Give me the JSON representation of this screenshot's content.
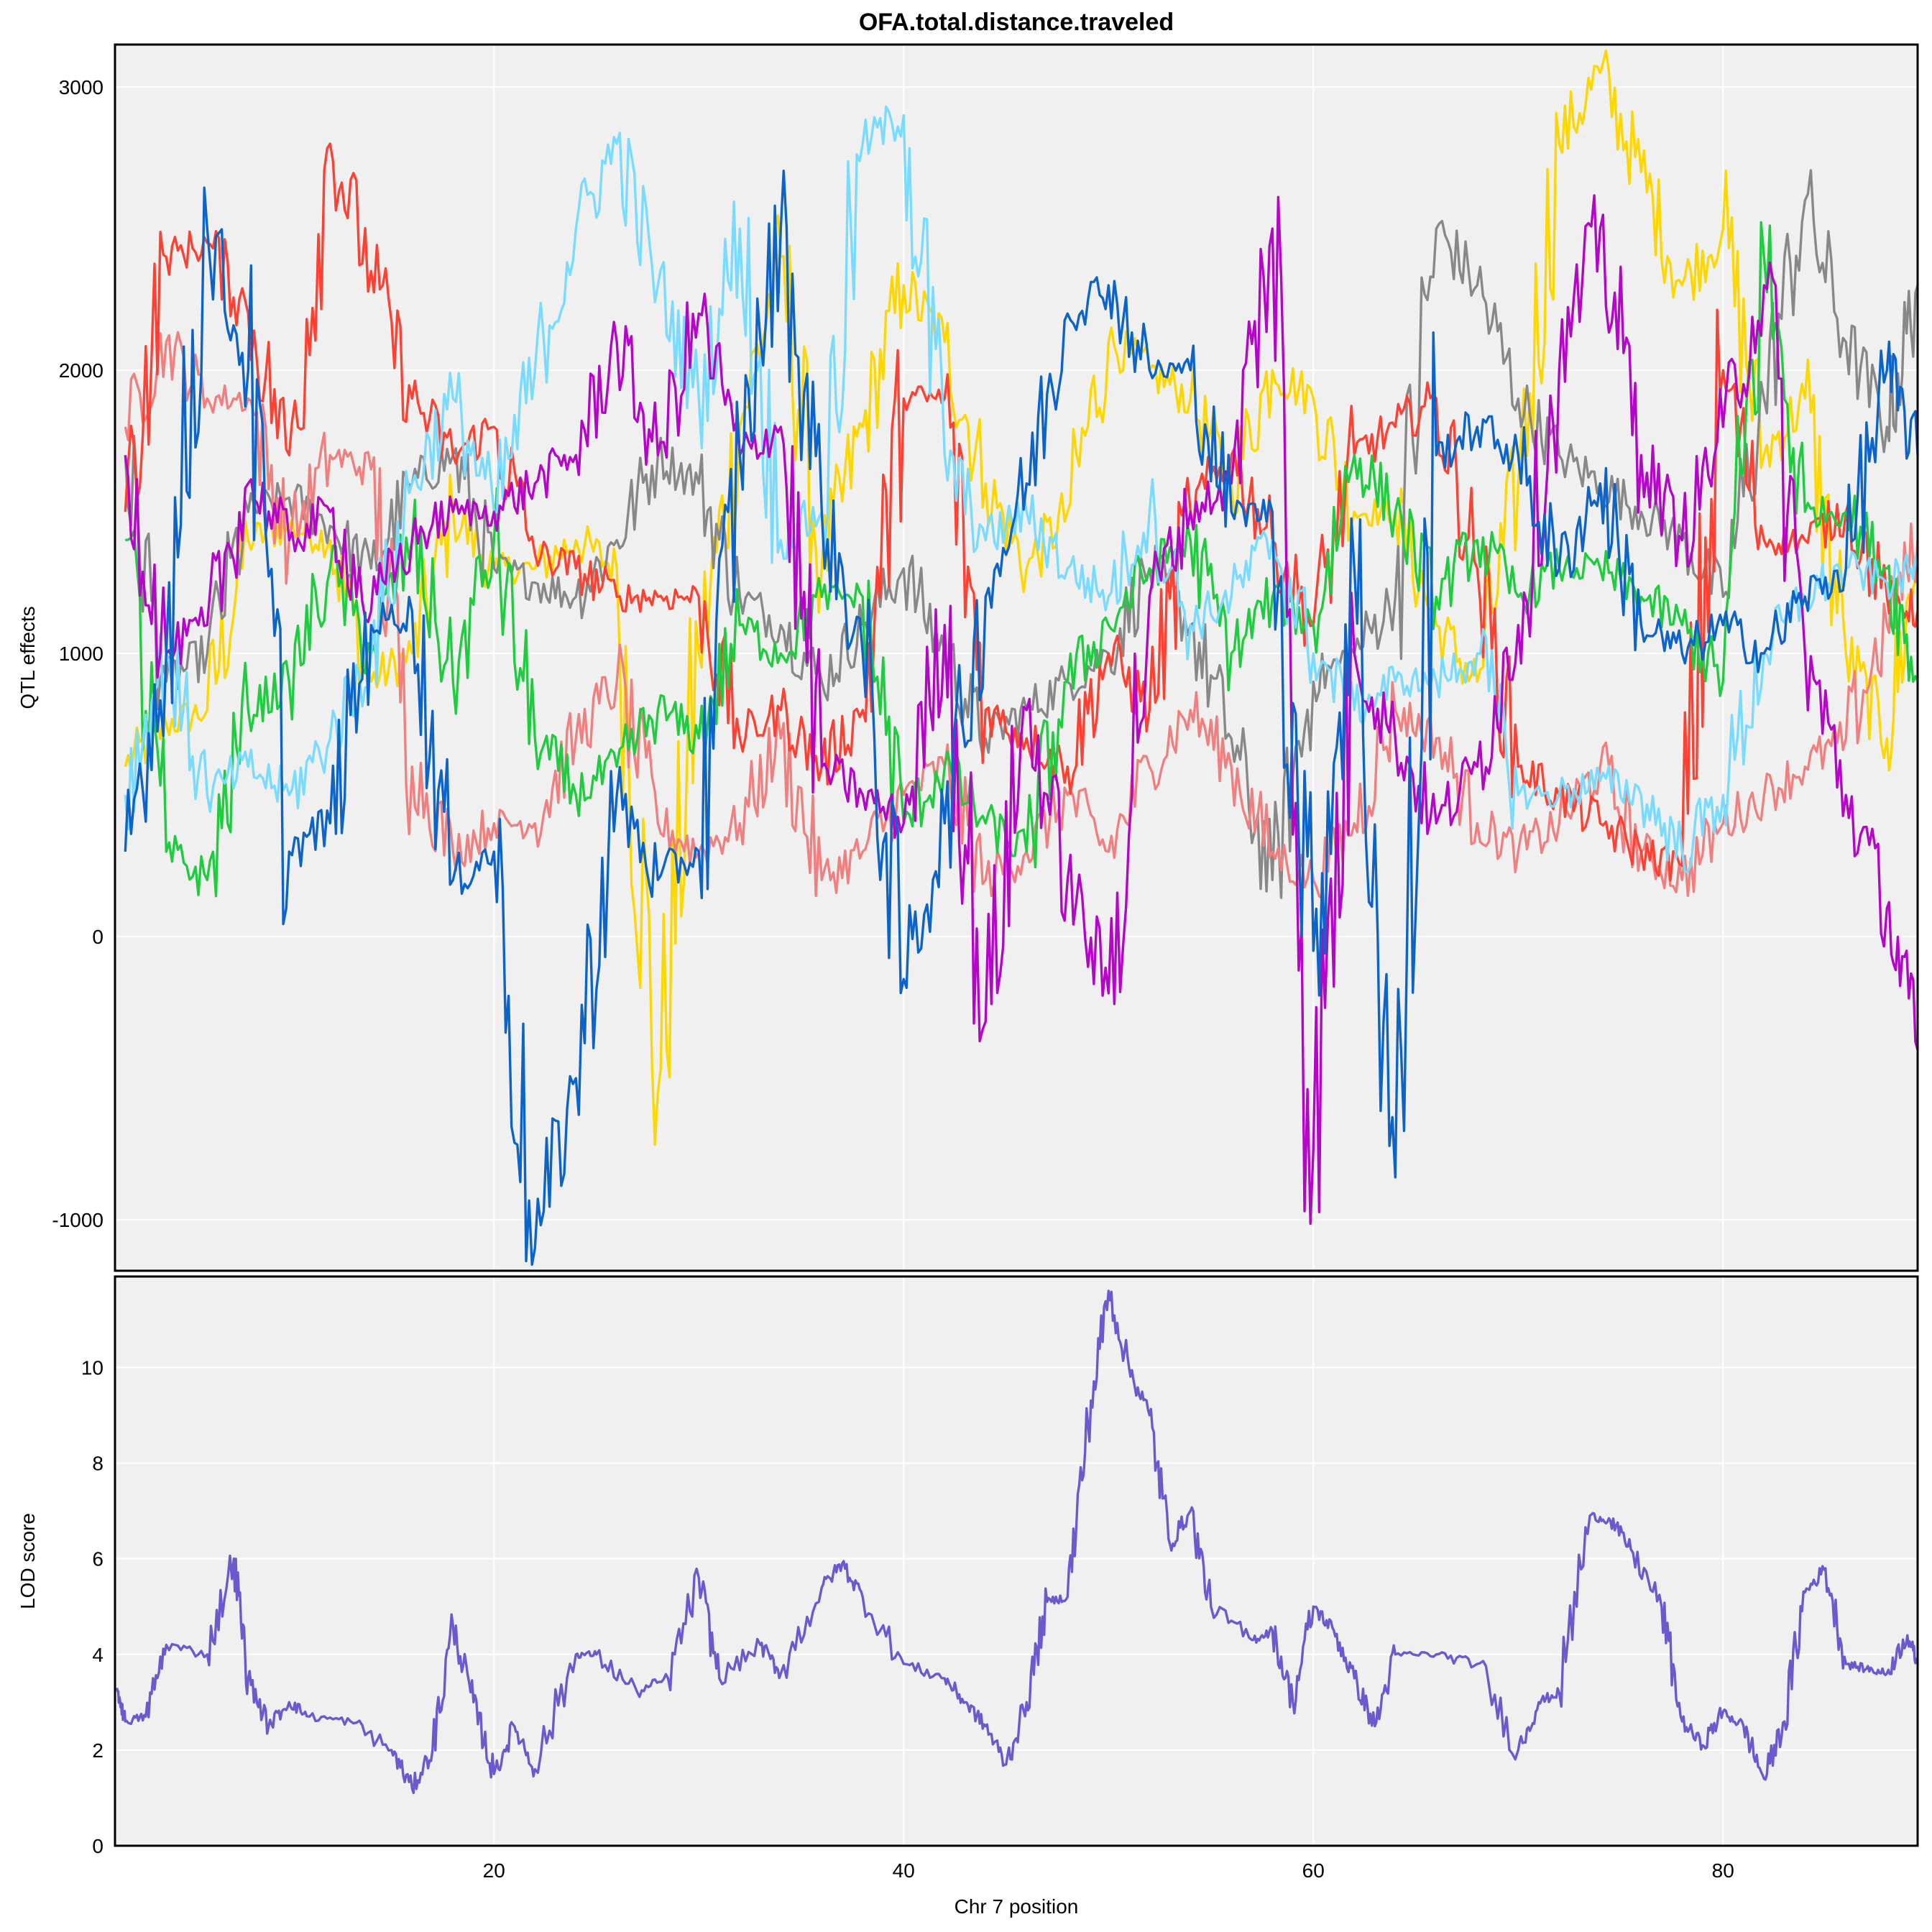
{
  "chart_data": [
    {
      "type": "line",
      "panel": "top",
      "title": "OFA.total.distance.traveled",
      "xlabel": "",
      "ylabel": "QTL effects",
      "xlim": [
        1.5,
        89.5
      ],
      "ylim": [
        -1180,
        3150
      ],
      "xticks": [
        20,
        40,
        60,
        80
      ],
      "yticks": [
        -1000,
        0,
        1000,
        2000,
        3000
      ],
      "grid": true,
      "x": [
        2,
        4,
        6,
        8,
        10,
        12,
        14,
        16,
        18,
        20,
        22,
        24,
        26,
        28,
        30,
        32,
        34,
        36,
        38,
        40,
        42,
        44,
        46,
        48,
        50,
        52,
        54,
        56,
        58,
        60,
        62,
        64,
        66,
        68,
        70,
        72,
        74,
        76,
        78,
        80,
        82,
        84,
        86,
        88,
        89.5
      ],
      "series": [
        {
          "color": "#ffd700",
          "values": [
            600,
            750,
            800,
            1400,
            1450,
            1400,
            900,
            1000,
            1500,
            1300,
            1300,
            1400,
            1300,
            -550,
            1000,
            1800,
            2400,
            1300,
            1800,
            2300,
            2100,
            1600,
            1300,
            1500,
            2100,
            2000,
            1900,
            1600,
            2000,
            1900,
            1500,
            1500,
            1100,
            900,
            1600,
            2800,
            3050,
            2700,
            2300,
            2500,
            1700,
            1900,
            1000,
            700,
            1350
          ]
        },
        {
          "color": "#888888",
          "values": [
            1700,
            900,
            1000,
            1500,
            1550,
            1450,
            1300,
            1600,
            1700,
            1300,
            1250,
            1200,
            1400,
            1700,
            1600,
            1200,
            1100,
            900,
            1100,
            1300,
            1000,
            700,
            800,
            900,
            1000,
            1300,
            1100,
            700,
            200,
            900,
            1000,
            1200,
            2500,
            2300,
            1900,
            1700,
            1600,
            1500,
            1400,
            1200,
            1900,
            2600,
            2100,
            1800,
            2300
          ]
        },
        {
          "color": "#f08080",
          "values": [
            1800,
            2100,
            1900,
            1900,
            1400,
            1700,
            1650,
            600,
            300,
            400,
            400,
            700,
            900,
            400,
            300,
            400,
            700,
            200,
            300,
            500,
            600,
            200,
            300,
            500,
            300,
            600,
            800,
            600,
            300,
            200,
            400,
            800,
            700,
            400,
            300,
            400,
            600,
            300,
            200,
            400,
            500,
            600,
            700,
            1100,
            1400
          ]
        },
        {
          "color": "#ff4133",
          "values": [
            1500,
            2400,
            2450,
            2200,
            1700,
            2800,
            2350,
            1900,
            1700,
            1800,
            1350,
            1300,
            1200,
            1200,
            1200,
            700,
            800,
            600,
            800,
            1900,
            1900,
            800,
            700,
            600,
            1000,
            800,
            1500,
            1700,
            1400,
            1100,
            1700,
            1800,
            1900,
            1300,
            600,
            500,
            400,
            300,
            250,
            2000,
            1400,
            1400,
            1500,
            1200,
            1150
          ]
        },
        {
          "color": "#1fcc3f",
          "values": [
            1400,
            300,
            200,
            800,
            900,
            1300,
            1000,
            1400,
            900,
            1400,
            700,
            500,
            600,
            800,
            700,
            1100,
            1000,
            1200,
            1200,
            400,
            600,
            400,
            300,
            900,
            1100,
            1300,
            1400,
            1000,
            1200,
            1100,
            1700,
            1500,
            1200,
            1400,
            1200,
            1300,
            1300,
            1200,
            1100,
            900,
            2400,
            1500,
            1500,
            1300,
            900
          ]
        },
        {
          "color": "#78dbff",
          "values": [
            500,
            1000,
            500,
            600,
            500,
            700,
            1000,
            1600,
            1900,
            1500,
            2000,
            2500,
            2800,
            2300,
            1900,
            2500,
            1400,
            1500,
            2800,
            2900,
            1700,
            1400,
            1500,
            1300,
            1200,
            1500,
            1100,
            1200,
            1400,
            1000,
            800,
            900,
            900,
            1000,
            500,
            500,
            550,
            500,
            300,
            500,
            1000,
            1200,
            1300,
            1250,
            1300
          ]
        },
        {
          "color": "#b405c8",
          "values": [
            1700,
            1000,
            1100,
            1600,
            1400,
            1500,
            1150,
            1400,
            1500,
            1500,
            1600,
            1700,
            2100,
            1700,
            2200,
            1700,
            1800,
            600,
            500,
            400,
            1100,
            -300,
            800,
            200,
            -200,
            1200,
            1500,
            1600,
            2500,
            -750,
            1000,
            700,
            400,
            600,
            1100,
            2000,
            2500,
            1700,
            1400,
            1800,
            2300,
            1000,
            500,
            100,
            -400
          ]
        },
        {
          "color": "#0d64c8",
          "values": [
            300,
            1000,
            2500,
            2000,
            300,
            400,
            1100,
            1150,
            200,
            300,
            -1100,
            -500,
            500,
            200,
            300,
            1700,
            2500,
            1500,
            1000,
            -150,
            400,
            1200,
            1600,
            2200,
            2300,
            2000,
            2000,
            1500,
            1500,
            -50,
            1300,
            -850,
            1700,
            1800,
            1700,
            1300,
            1600,
            1100,
            1000,
            1100,
            1000,
            1200,
            1300,
            2000,
            1700
          ]
        }
      ]
    },
    {
      "type": "line",
      "panel": "bottom",
      "title": "",
      "xlabel": "Chr 7 position",
      "ylabel": "LOD score",
      "xlim": [
        1.5,
        89.5
      ],
      "ylim": [
        0,
        11.9
      ],
      "xticks": [
        20,
        40,
        60,
        80
      ],
      "yticks": [
        0,
        2,
        4,
        6,
        8,
        10
      ],
      "grid": true,
      "x": [
        1.6,
        2.0,
        3.0,
        4.0,
        6.0,
        7.3,
        8.0,
        9.0,
        10.0,
        11.0,
        13.0,
        15.0,
        16.0,
        17.0,
        18.0,
        19.0,
        20.0,
        21.0,
        22.0,
        24.0,
        25.0,
        27.0,
        28.5,
        30.0,
        31.0,
        33.0,
        34.0,
        36.0,
        37.0,
        38.0,
        40.0,
        42.0,
        43.0,
        44.0,
        45.0,
        46.0,
        47.0,
        48.0,
        49.0,
        50.0,
        51.0,
        52.0,
        53.0,
        54.0,
        55.0,
        57.0,
        58.0,
        59.0,
        60.0,
        61.0,
        62.0,
        63.0,
        64.0,
        66.0,
        68.0,
        70.0,
        71.0,
        72.0,
        73.5,
        74.5,
        75.5,
        77.0,
        78.0,
        79.0,
        80.0,
        81.0,
        82.0,
        83.0,
        84.0,
        85.0,
        86.0,
        87.0,
        88.0,
        89.0,
        89.5
      ],
      "series": [
        {
          "color": "#6a5acd",
          "values": [
            3.3,
            2.6,
            2.7,
            4.2,
            4.0,
            6.0,
            3.5,
            2.5,
            3.0,
            2.7,
            2.6,
            2.0,
            1.2,
            2.0,
            4.6,
            3.0,
            1.5,
            2.5,
            1.6,
            4.0,
            4.0,
            3.2,
            3.5,
            5.6,
            3.5,
            4.2,
            3.6,
            5.4,
            5.9,
            5.2,
            3.8,
            3.5,
            3.0,
            2.5,
            1.7,
            3.0,
            5.1,
            5.2,
            8.8,
            11.6,
            10.0,
            9.0,
            6.3,
            7.0,
            5.0,
            4.3,
            4.5,
            3.0,
            5.0,
            4.5,
            3.5,
            2.5,
            4.0,
            4.0,
            3.8,
            2.0,
            3.0,
            3.2,
            6.9,
            6.8,
            6.2,
            5.0,
            2.6,
            2.1,
            2.8,
            2.5,
            1.4,
            2.6,
            5.3,
            5.8,
            3.8,
            3.7,
            3.6,
            4.4,
            3.8
          ]
        }
      ]
    }
  ]
}
